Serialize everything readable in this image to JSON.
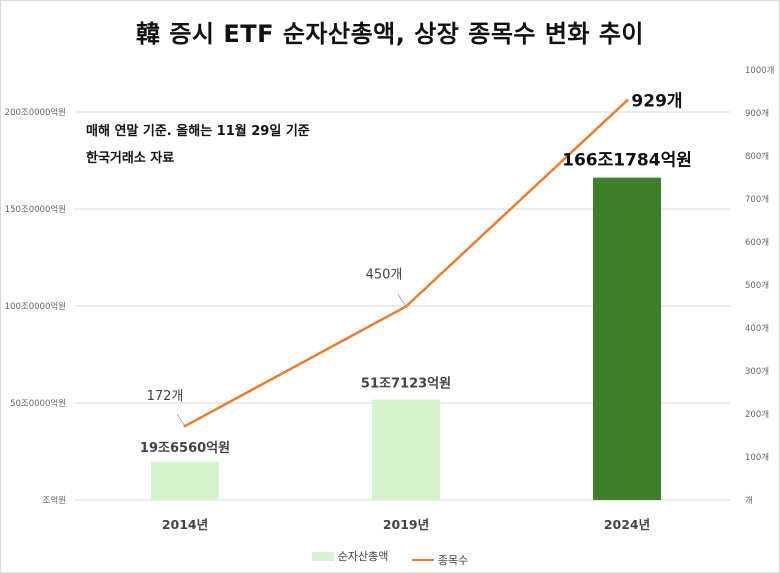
{
  "title": "韓 증시 ETF 순자산총액, 상장 종목수 변화 추이",
  "notes": {
    "line1": "매해 연말 기준. 올해는 11월 29일 기준",
    "line2": "한국거래소 자료"
  },
  "colors": {
    "bar_light": "#d6f2cf",
    "bar_highlight": "#3f7e2a",
    "line": "#ed7d31",
    "grid": "#d9d9d9"
  },
  "chart_data": {
    "type": "bar+line",
    "title": "韓 증시 ETF 순자산총액, 상장 종목수 변화 추이",
    "categories": [
      "2014년",
      "2019년",
      "2024년"
    ],
    "series": [
      {
        "name": "순자산총액",
        "type": "bar",
        "axis": "left",
        "unit": "억원",
        "values": [
          196560,
          517123,
          1661784
        ],
        "labels": [
          "19조6560억원",
          "51조7123억원",
          "166조1784억원"
        ]
      },
      {
        "name": "종목수",
        "type": "line",
        "axis": "right",
        "unit": "개",
        "values": [
          172,
          450,
          929
        ],
        "labels": [
          "172개",
          "450개",
          "929개"
        ]
      }
    ],
    "left_axis": {
      "range": [
        0,
        2000000
      ],
      "ticks": [
        0,
        500000,
        1000000,
        1500000,
        2000000
      ],
      "tick_labels": [
        "조억원",
        "50조0000억원",
        "100조0000억원",
        "150조0000억원",
        "200조0000억원"
      ]
    },
    "right_axis": {
      "range": [
        0,
        1000
      ],
      "ticks": [
        0,
        100,
        200,
        300,
        400,
        500,
        600,
        700,
        800,
        900,
        1000
      ],
      "tick_labels": [
        "개",
        "100개",
        "200개",
        "300개",
        "400개",
        "500개",
        "600개",
        "700개",
        "800개",
        "900개",
        "1000개"
      ]
    },
    "grid": true,
    "legend": {
      "position": "bottom",
      "entries": [
        "순자산총액",
        "종목수"
      ]
    }
  }
}
